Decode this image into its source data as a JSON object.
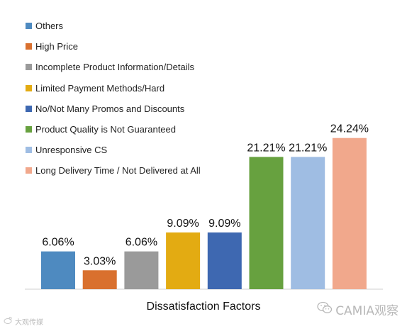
{
  "chart_data": {
    "type": "bar",
    "xlabel": "Dissatisfaction Factors",
    "ylim": [
      0,
      30
    ],
    "grid": false,
    "legend_position": "top-left",
    "categories": [
      "Others",
      "High Price",
      "Incomplete Product Information/Details",
      "Limited Payment Methods/Hard",
      "No/Not Many Promos and Discounts",
      "Product Quality is Not Guaranteed",
      "Unresponsive CS",
      "Long Delivery Time / Not Delivered at All"
    ],
    "values": [
      6.06,
      3.03,
      6.06,
      9.09,
      9.09,
      21.21,
      21.21,
      24.24
    ],
    "data_labels": [
      "6.06%",
      "3.03%",
      "6.06%",
      "9.09%",
      "9.09%",
      "21.21%",
      "21.21%",
      "24.24%"
    ],
    "colors": [
      "#4e8ac0",
      "#d9702e",
      "#9a9a9a",
      "#e3ab12",
      "#3e68b1",
      "#67a13f",
      "#9fbde3",
      "#f1a88c"
    ]
  },
  "watermarks": {
    "left": "大观传媒",
    "right": "CAMIA观察"
  }
}
